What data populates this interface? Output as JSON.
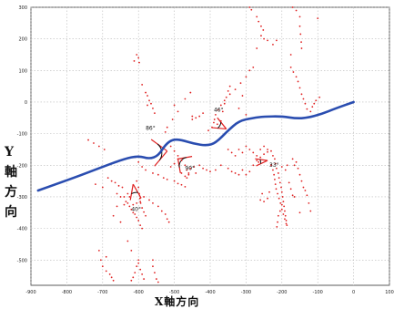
{
  "chart_data": {
    "type": "scatter",
    "title": "",
    "xlabel": "X軸方向",
    "ylabel_chars": [
      "Y",
      "軸",
      "方",
      "向"
    ],
    "xlim": [
      -900,
      100
    ],
    "ylim": [
      -580,
      300
    ],
    "x_ticks": [
      -900,
      -800,
      -700,
      -600,
      -500,
      -400,
      -300,
      -200,
      -100,
      0,
      100
    ],
    "y_ticks": [
      300,
      200,
      100,
      0,
      -100,
      -200,
      -300,
      -400,
      -500
    ],
    "grid": true,
    "trajectory": {
      "color": "#2a4db0",
      "points": [
        [
          -880,
          -280
        ],
        [
          -780,
          -240
        ],
        [
          -700,
          -205
        ],
        [
          -640,
          -180
        ],
        [
          -600,
          -170
        ],
        [
          -570,
          -180
        ],
        [
          -545,
          -170
        ],
        [
          -525,
          -135
        ],
        [
          -505,
          -118
        ],
        [
          -480,
          -120
        ],
        [
          -445,
          -132
        ],
        [
          -410,
          -138
        ],
        [
          -385,
          -130
        ],
        [
          -350,
          -90
        ],
        [
          -320,
          -60
        ],
        [
          -280,
          -50
        ],
        [
          -250,
          -46
        ],
        [
          -200,
          -45
        ],
        [
          -160,
          -52
        ],
        [
          -130,
          -50
        ],
        [
          -90,
          -38
        ],
        [
          -50,
          -20
        ],
        [
          0,
          0
        ]
      ]
    },
    "scatter": {
      "color": "#e02020",
      "points": [
        [
          -290,
          300
        ],
        [
          -285,
          292
        ],
        [
          -270,
          270
        ],
        [
          -265,
          255
        ],
        [
          -258,
          240
        ],
        [
          -252,
          228
        ],
        [
          -258,
          210
        ],
        [
          -250,
          200
        ],
        [
          -240,
          195
        ],
        [
          -225,
          182
        ],
        [
          -215,
          195
        ],
        [
          -170,
          300
        ],
        [
          -160,
          290
        ],
        [
          -150,
          270
        ],
        [
          -150,
          240
        ],
        [
          -148,
          215
        ],
        [
          -146,
          190
        ],
        [
          -145,
          170
        ],
        [
          -175,
          150
        ],
        [
          -175,
          110
        ],
        [
          -168,
          95
        ],
        [
          -160,
          80
        ],
        [
          -155,
          65
        ],
        [
          -150,
          45
        ],
        [
          -145,
          25
        ],
        [
          -140,
          10
        ],
        [
          -135,
          -5
        ],
        [
          -130,
          -22
        ],
        [
          -120,
          -30
        ],
        [
          -115,
          -15
        ],
        [
          -110,
          -5
        ],
        [
          -105,
          5
        ],
        [
          -95,
          15
        ],
        [
          -100,
          265
        ],
        [
          -270,
          170
        ],
        [
          -280,
          110
        ],
        [
          -290,
          100
        ],
        [
          -300,
          80
        ],
        [
          -315,
          60
        ],
        [
          -330,
          40
        ],
        [
          -345,
          25
        ],
        [
          -360,
          5
        ],
        [
          -370,
          -10
        ],
        [
          -378,
          -25
        ],
        [
          -385,
          -40
        ],
        [
          -388,
          -55
        ],
        [
          -390,
          -65
        ],
        [
          -370,
          -60
        ],
        [
          -365,
          -30
        ],
        [
          -360,
          -5
        ],
        [
          -355,
          15
        ],
        [
          -350,
          35
        ],
        [
          -345,
          50
        ],
        [
          -300,
          -40
        ],
        [
          -320,
          -20
        ],
        [
          -310,
          20
        ],
        [
          -490,
          -30
        ],
        [
          -500,
          -10
        ],
        [
          -470,
          10
        ],
        [
          -455,
          30
        ],
        [
          -450,
          -55
        ],
        [
          -440,
          -50
        ],
        [
          -430,
          -45
        ],
        [
          -505,
          -55
        ],
        [
          -520,
          -80
        ],
        [
          -525,
          -95
        ],
        [
          -510,
          -140
        ],
        [
          -500,
          -155
        ],
        [
          -490,
          -170
        ],
        [
          -480,
          -185
        ],
        [
          -470,
          -200
        ],
        [
          -465,
          -215
        ],
        [
          -460,
          -230
        ],
        [
          -470,
          -235
        ],
        [
          -480,
          -225
        ],
        [
          -455,
          -210
        ],
        [
          -445,
          -205
        ],
        [
          -430,
          -200
        ],
        [
          -420,
          -210
        ],
        [
          -410,
          -215
        ],
        [
          -400,
          -220
        ],
        [
          -385,
          -215
        ],
        [
          -370,
          -200
        ],
        [
          -350,
          -210
        ],
        [
          -340,
          -220
        ],
        [
          -330,
          -225
        ],
        [
          -320,
          -230
        ],
        [
          -310,
          -215
        ],
        [
          -300,
          -230
        ],
        [
          -290,
          -220
        ],
        [
          -280,
          -200
        ],
        [
          -270,
          -185
        ],
        [
          -260,
          -175
        ],
        [
          -250,
          -165
        ],
        [
          -240,
          -158
        ],
        [
          -230,
          -155
        ],
        [
          -225,
          -170
        ],
        [
          -220,
          -180
        ],
        [
          -218,
          -195
        ],
        [
          -215,
          -210
        ],
        [
          -210,
          -225
        ],
        [
          -208,
          -240
        ],
        [
          -205,
          -255
        ],
        [
          -202,
          -270
        ],
        [
          -200,
          -285
        ],
        [
          -198,
          -300
        ],
        [
          -196,
          -315
        ],
        [
          -194,
          -330
        ],
        [
          -192,
          -345
        ],
        [
          -190,
          -360
        ],
        [
          -188,
          -375
        ],
        [
          -186,
          -390
        ],
        [
          -200,
          -325
        ],
        [
          -205,
          -345
        ],
        [
          -210,
          -360
        ],
        [
          -212,
          -380
        ],
        [
          -214,
          -395
        ],
        [
          -180,
          -255
        ],
        [
          -175,
          -275
        ],
        [
          -170,
          -295
        ],
        [
          -165,
          -300
        ],
        [
          -160,
          -190
        ],
        [
          -155,
          -210
        ],
        [
          -150,
          -230
        ],
        [
          -145,
          -250
        ],
        [
          -140,
          -270
        ],
        [
          -135,
          -280
        ],
        [
          -130,
          -295
        ],
        [
          -125,
          -320
        ],
        [
          -120,
          -345
        ],
        [
          -150,
          -350
        ],
        [
          -170,
          -180
        ],
        [
          -165,
          -200
        ],
        [
          -185,
          -200
        ],
        [
          -190,
          -215
        ],
        [
          -200,
          -205
        ],
        [
          -260,
          -310
        ],
        [
          -250,
          -315
        ],
        [
          -240,
          -305
        ],
        [
          -255,
          -290
        ],
        [
          -235,
          -285
        ],
        [
          -260,
          -150
        ],
        [
          -250,
          -140
        ],
        [
          -240,
          -150
        ],
        [
          -605,
          150
        ],
        [
          -600,
          140
        ],
        [
          -612,
          130
        ],
        [
          -598,
          125
        ],
        [
          -590,
          55
        ],
        [
          -580,
          30
        ],
        [
          -575,
          20
        ],
        [
          -570,
          5
        ],
        [
          -565,
          -5
        ],
        [
          -560,
          -20
        ],
        [
          -555,
          -35
        ],
        [
          -575,
          -10
        ],
        [
          -610,
          -175
        ],
        [
          -600,
          -190
        ],
        [
          -590,
          -205
        ],
        [
          -580,
          -215
        ],
        [
          -560,
          -225
        ],
        [
          -545,
          -230
        ],
        [
          -530,
          -240
        ],
        [
          -520,
          -245
        ],
        [
          -500,
          -250
        ],
        [
          -490,
          -258
        ],
        [
          -480,
          -262
        ],
        [
          -470,
          -268
        ],
        [
          -490,
          -180
        ],
        [
          -500,
          -195
        ],
        [
          -510,
          -205
        ],
        [
          -640,
          -300
        ],
        [
          -635,
          -315
        ],
        [
          -630,
          -320
        ],
        [
          -625,
          -330
        ],
        [
          -620,
          -340
        ],
        [
          -615,
          -350
        ],
        [
          -610,
          -355
        ],
        [
          -605,
          -365
        ],
        [
          -600,
          -375
        ],
        [
          -595,
          -390
        ],
        [
          -590,
          -400
        ],
        [
          -640,
          -325
        ],
        [
          -660,
          -330
        ],
        [
          -670,
          -360
        ],
        [
          -690,
          -490
        ],
        [
          -710,
          -470
        ],
        [
          -705,
          -500
        ],
        [
          -700,
          -520
        ],
        [
          -690,
          -535
        ],
        [
          -680,
          -545
        ],
        [
          -675,
          -555
        ],
        [
          -670,
          -565
        ],
        [
          -600,
          -510
        ],
        [
          -595,
          -530
        ],
        [
          -590,
          -545
        ],
        [
          -585,
          -560
        ],
        [
          -620,
          -470
        ],
        [
          -630,
          -440
        ],
        [
          -650,
          -380
        ],
        [
          -605,
          -250
        ],
        [
          -600,
          -270
        ],
        [
          -598,
          -290
        ],
        [
          -596,
          -305
        ],
        [
          -594,
          -320
        ],
        [
          -590,
          -335
        ],
        [
          -585,
          -348
        ],
        [
          -580,
          -360
        ],
        [
          -585,
          -300
        ],
        [
          -595,
          -315
        ],
        [
          -605,
          -320
        ],
        [
          -615,
          -325
        ],
        [
          -625,
          -300
        ],
        [
          -630,
          -290
        ],
        [
          -645,
          -270
        ],
        [
          -655,
          -265
        ],
        [
          -665,
          -255
        ],
        [
          -675,
          -250
        ],
        [
          -685,
          -240
        ],
        [
          -570,
          -310
        ],
        [
          -560,
          -320
        ],
        [
          -545,
          -330
        ],
        [
          -535,
          -345
        ],
        [
          -525,
          -355
        ],
        [
          -520,
          -370
        ],
        [
          -515,
          -380
        ],
        [
          -660,
          -290
        ],
        [
          -650,
          -300
        ],
        [
          -700,
          -270
        ],
        [
          -720,
          -260
        ],
        [
          -740,
          -120
        ],
        [
          -725,
          -130
        ],
        [
          -710,
          -140
        ],
        [
          -695,
          -150
        ],
        [
          -460,
          -225
        ],
        [
          -440,
          -225
        ],
        [
          -465,
          -240
        ],
        [
          -600,
          -500
        ],
        [
          -605,
          -520
        ],
        [
          -610,
          -540
        ],
        [
          -615,
          -555
        ],
        [
          -620,
          -565
        ],
        [
          -560,
          -500
        ],
        [
          -560,
          -520
        ],
        [
          -555,
          -540
        ],
        [
          -550,
          -560
        ],
        [
          -545,
          -570
        ],
        [
          -450,
          -45
        ],
        [
          -420,
          -35
        ],
        [
          -380,
          -70
        ],
        [
          -395,
          -80
        ],
        [
          -405,
          -90
        ],
        [
          -350,
          -150
        ],
        [
          -340,
          -160
        ],
        [
          -330,
          -170
        ],
        [
          -320,
          -150
        ],
        [
          -310,
          -160
        ],
        [
          -300,
          -140
        ],
        [
          -290,
          -150
        ],
        [
          -280,
          -160
        ],
        [
          -270,
          -170
        ],
        [
          -265,
          -190
        ],
        [
          -230,
          -200
        ],
        [
          -225,
          -215
        ],
        [
          -222,
          -230
        ],
        [
          -220,
          -245
        ],
        [
          -218,
          -260
        ],
        [
          -216,
          -275
        ],
        [
          -212,
          -290
        ],
        [
          -208,
          -305
        ],
        [
          -204,
          -320
        ],
        [
          -200,
          -340
        ],
        [
          -196,
          -355
        ],
        [
          -192,
          -370
        ],
        [
          -188,
          -385
        ]
      ]
    },
    "annotations": [
      {
        "text": "86°",
        "x": -580,
        "y": -88
      },
      {
        "text": "46°",
        "x": -390,
        "y": -30
      },
      {
        "text": "90°",
        "x": -470,
        "y": -215
      },
      {
        "text": "33°",
        "x": -235,
        "y": -205
      },
      {
        "text": "40°",
        "x": -620,
        "y": -345
      }
    ],
    "angle_markers": [
      {
        "vx": -520,
        "vy": -155,
        "a1": 230,
        "a2": 144,
        "r": 55
      },
      {
        "vx": -355,
        "vy": -85,
        "a1": 175,
        "a2": 129,
        "r": 40
      },
      {
        "vx": -490,
        "vy": -180,
        "a1": 10,
        "a2": 280,
        "r": 40
      },
      {
        "vx": -240,
        "vy": -185,
        "a1": 205,
        "a2": 172,
        "r": 35
      },
      {
        "vx": -615,
        "vy": -260,
        "a1": 300,
        "a2": 260,
        "r": 45
      }
    ]
  }
}
